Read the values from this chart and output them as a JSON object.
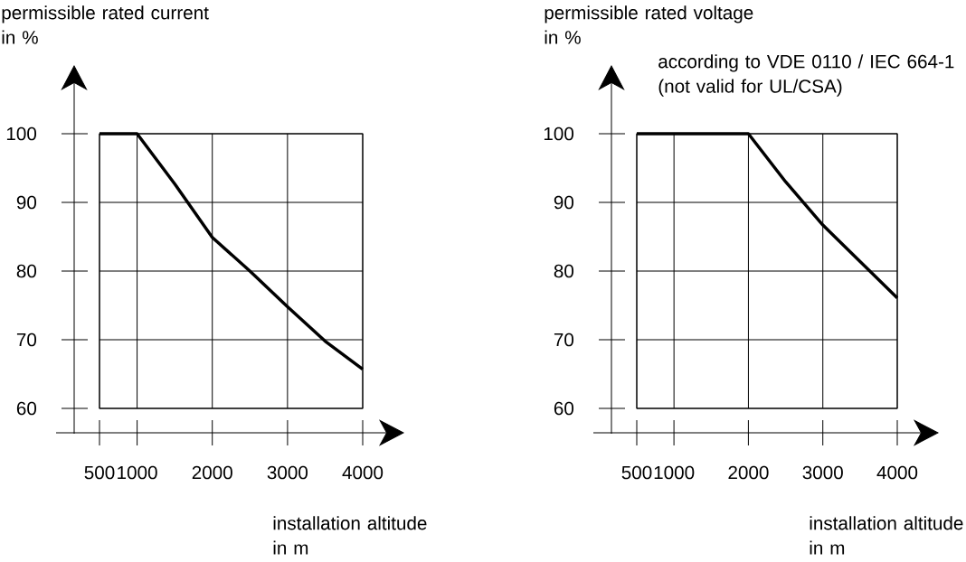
{
  "chart_data": [
    {
      "type": "line",
      "ylabel": "permissible rated current in %",
      "xlabel": "installation altitude in m",
      "xlim": [
        500,
        4000
      ],
      "ylim": [
        60,
        100
      ],
      "xticks": [
        500,
        1000,
        2000,
        3000,
        4000
      ],
      "yticks": [
        60,
        70,
        80,
        90,
        100
      ],
      "grid": true,
      "series": [
        {
          "color": "#000000",
          "x": [
            500,
            1000,
            1500,
            2000,
            2500,
            3000,
            3500,
            4000
          ],
          "values": [
            100,
            100,
            92.7,
            84.9,
            80,
            74.8,
            69.8,
            65.7
          ]
        }
      ]
    },
    {
      "type": "line",
      "ylabel": "permissible rated voltage in %",
      "xlabel": "installation altitude in m",
      "annotations": [
        "according to VDE 0110 / IEC 664-1 (not valid for UL/CSA)"
      ],
      "xlim": [
        500,
        4000
      ],
      "ylim": [
        60,
        100
      ],
      "xticks": [
        500,
        1000,
        2000,
        3000,
        4000
      ],
      "yticks": [
        60,
        70,
        80,
        90,
        100
      ],
      "grid": true,
      "series": [
        {
          "color": "#000000",
          "x": [
            500,
            1000,
            2000,
            2500,
            3000,
            3500,
            4000
          ],
          "values": [
            100,
            100,
            100,
            93,
            86.7,
            81.4,
            76.1
          ]
        }
      ]
    }
  ]
}
